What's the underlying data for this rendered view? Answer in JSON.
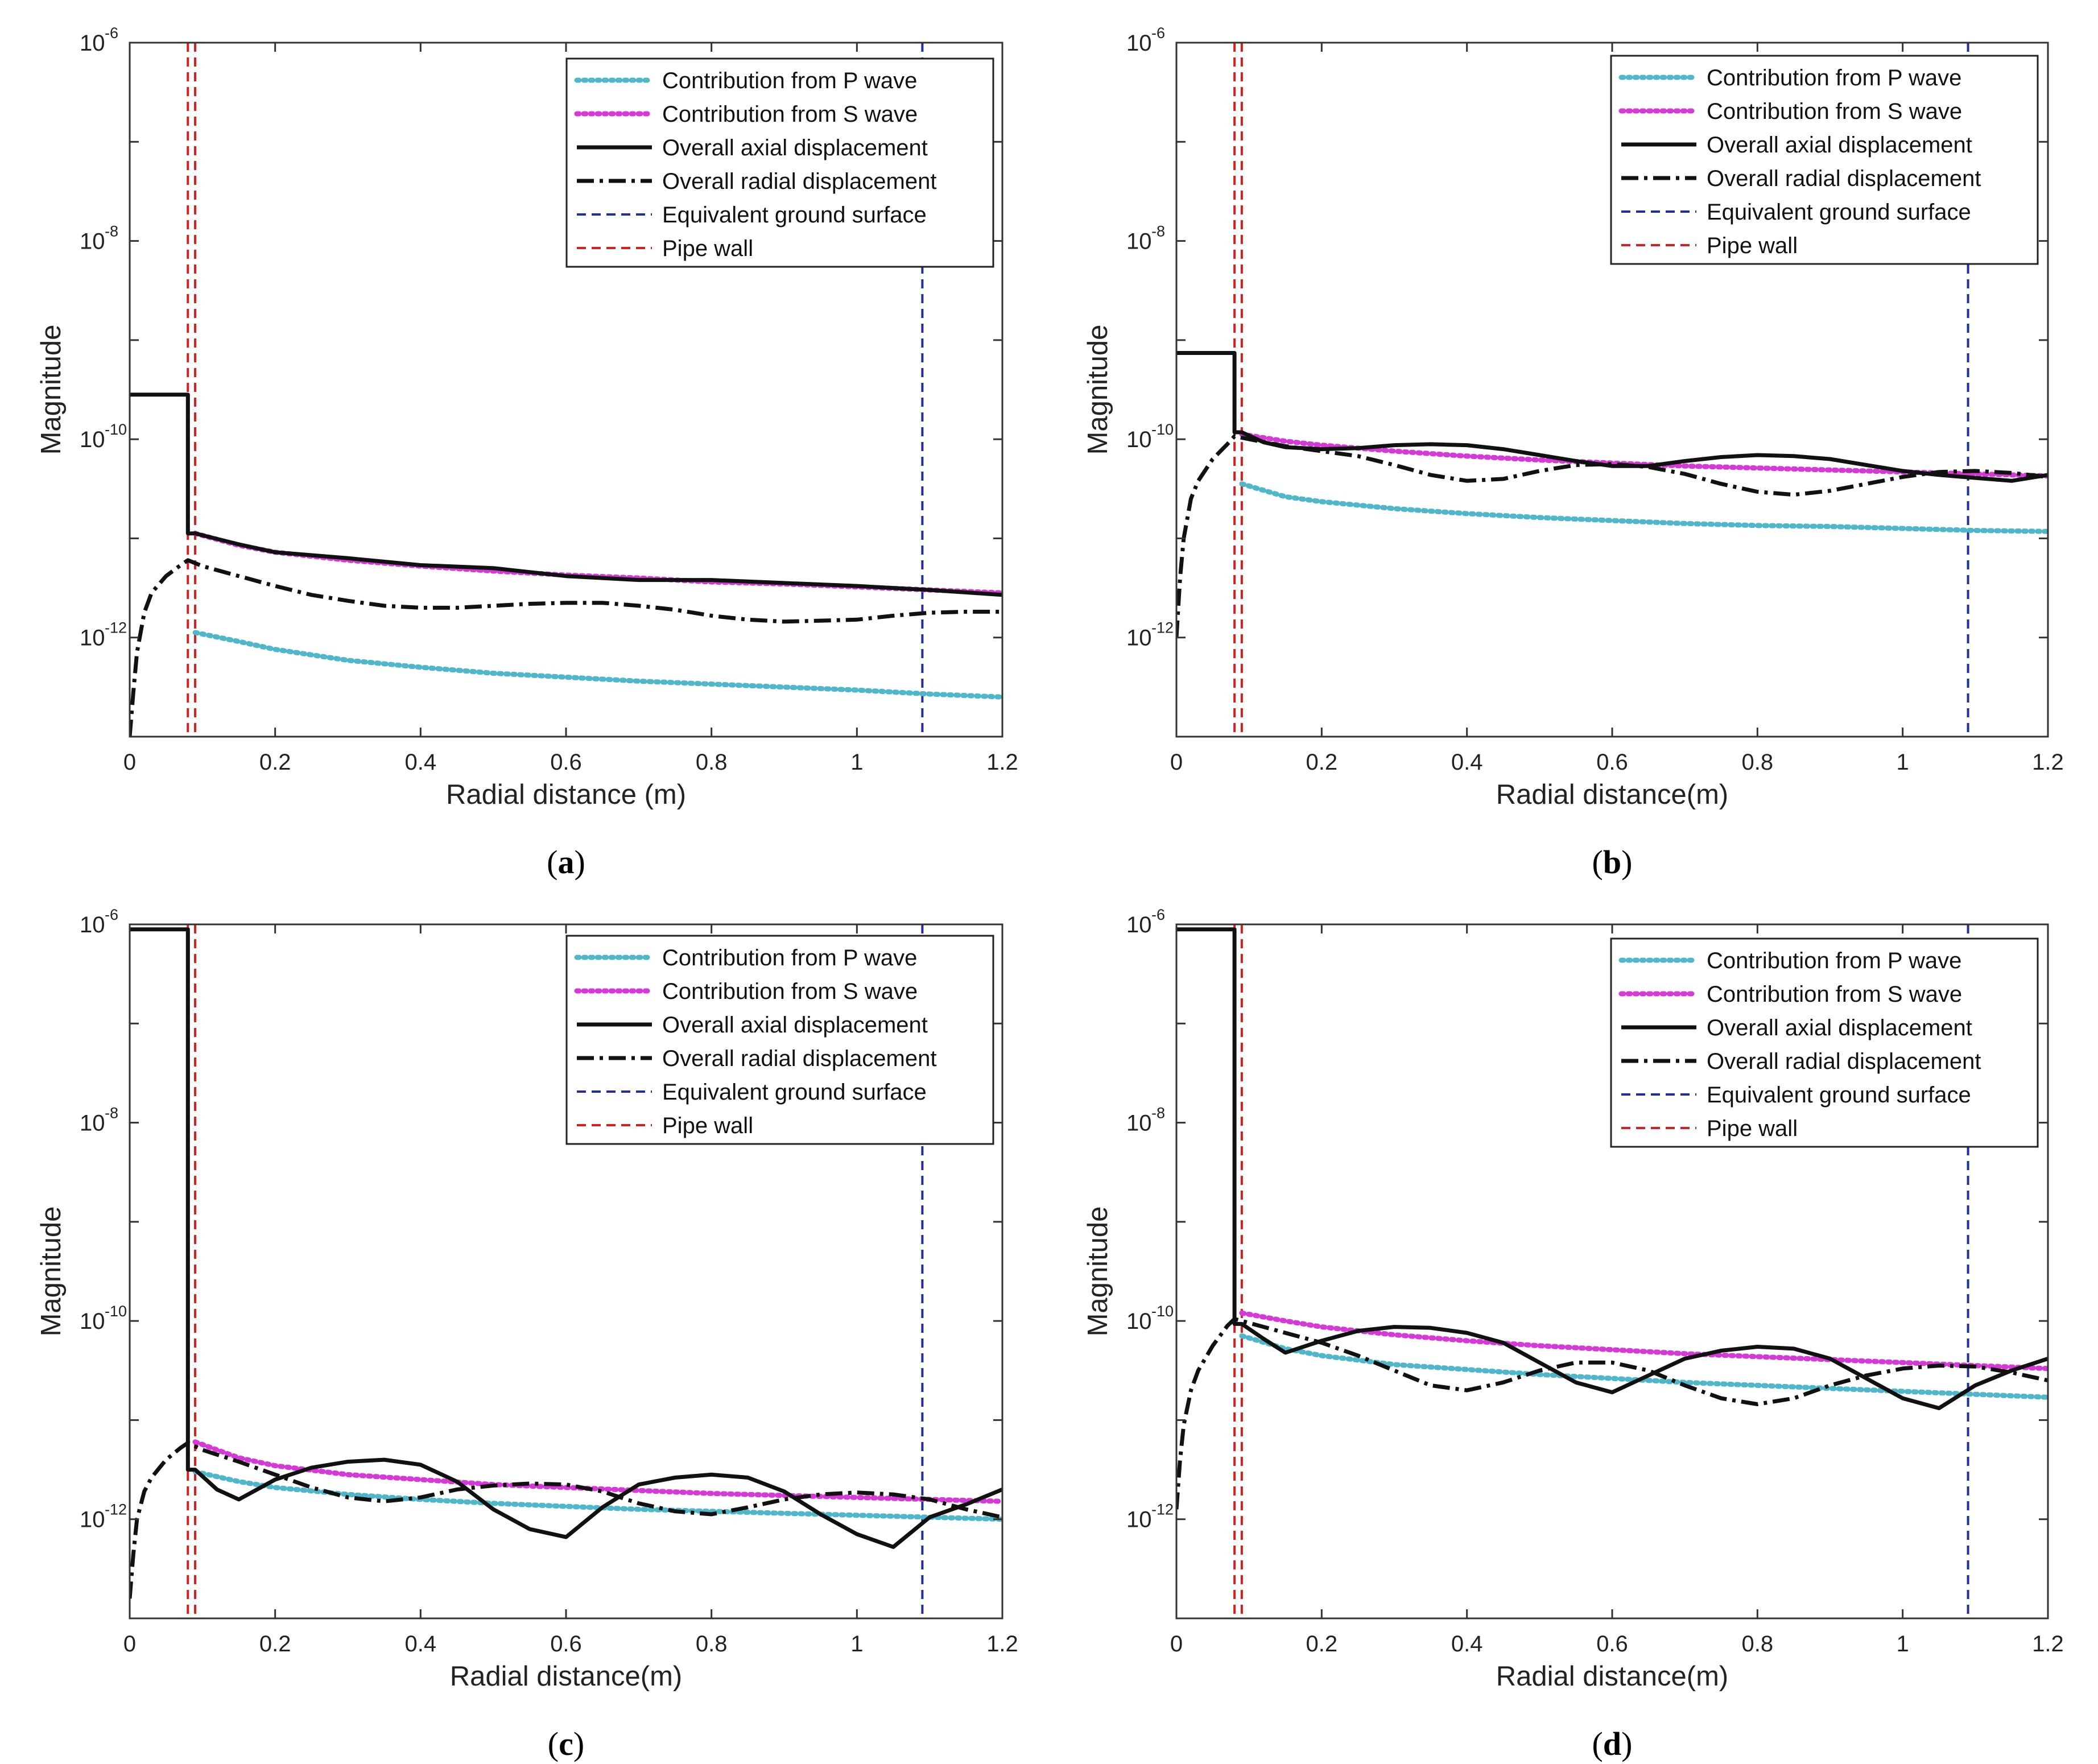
{
  "chart_data": [
    {
      "type": "line",
      "panel_label": "a",
      "xlabel": "Radial distance (m)",
      "ylabel": "Magnitude",
      "xlim": [
        0,
        1.2
      ],
      "ylim_exp": [
        -13,
        -6
      ],
      "x_ticks": [
        "0",
        "0.2",
        "0.4",
        "0.6",
        "0.8",
        "1",
        "1.2"
      ],
      "y_ticks": [
        {
          "base": "10",
          "exp": "-6"
        },
        {
          "base": "10",
          "exp": "-8"
        },
        {
          "base": "10",
          "exp": "-10"
        },
        {
          "base": "10",
          "exp": "-12"
        }
      ],
      "legend": [
        "Contribution from P wave",
        "Contribution from S wave",
        "Overall axial displacement",
        "Overall radial displacement",
        "Equivalent ground surface",
        "Pipe wall"
      ],
      "pipe_wall_x": [
        0.08,
        0.09
      ],
      "ground_surface_x": 1.09,
      "series": [
        {
          "name": "Contribution from P wave",
          "x": [
            0.09,
            0.15,
            0.2,
            0.3,
            0.4,
            0.5,
            0.6,
            0.7,
            0.8,
            0.9,
            1.0,
            1.1,
            1.2
          ],
          "log10": [
            -11.95,
            -12.04,
            -12.12,
            -12.23,
            -12.3,
            -12.36,
            -12.4,
            -12.44,
            -12.47,
            -12.5,
            -12.53,
            -12.57,
            -12.6
          ]
        },
        {
          "name": "Contribution from S wave",
          "x": [
            0.09,
            0.15,
            0.2,
            0.3,
            0.4,
            0.5,
            0.6,
            0.7,
            0.8,
            0.9,
            1.0,
            1.1,
            1.2
          ],
          "log10": [
            -10.95,
            -11.07,
            -11.14,
            -11.22,
            -11.28,
            -11.33,
            -11.37,
            -11.4,
            -11.44,
            -11.46,
            -11.49,
            -11.52,
            -11.55
          ]
        },
        {
          "name": "Overall axial displacement",
          "x": [
            0,
            0.08,
            0.08,
            0.09,
            0.15,
            0.2,
            0.3,
            0.4,
            0.5,
            0.6,
            0.7,
            0.8,
            0.9,
            1.0,
            1.1,
            1.2
          ],
          "log10": [
            -9.55,
            -9.55,
            -10.95,
            -10.95,
            -11.06,
            -11.14,
            -11.2,
            -11.27,
            -11.3,
            -11.38,
            -11.42,
            -11.42,
            -11.45,
            -11.48,
            -11.52,
            -11.57
          ]
        },
        {
          "name": "Overall radial displacement",
          "x": [
            0,
            0.005,
            0.01,
            0.02,
            0.03,
            0.05,
            0.07,
            0.08,
            0.1,
            0.15,
            0.2,
            0.25,
            0.3,
            0.35,
            0.4,
            0.45,
            0.5,
            0.55,
            0.6,
            0.65,
            0.7,
            0.75,
            0.8,
            0.85,
            0.9,
            0.95,
            1.0,
            1.05,
            1.1,
            1.15,
            1.2
          ],
          "log10": [
            -13.0,
            -12.55,
            -12.15,
            -11.75,
            -11.55,
            -11.38,
            -11.27,
            -11.22,
            -11.28,
            -11.38,
            -11.48,
            -11.57,
            -11.63,
            -11.68,
            -11.7,
            -11.7,
            -11.68,
            -11.66,
            -11.65,
            -11.65,
            -11.68,
            -11.72,
            -11.78,
            -11.82,
            -11.84,
            -11.83,
            -11.82,
            -11.78,
            -11.75,
            -11.74,
            -11.74
          ]
        }
      ]
    },
    {
      "type": "line",
      "panel_label": "b",
      "xlabel": "Radial distance(m)",
      "ylabel": "Magnitude",
      "xlim": [
        0,
        1.2
      ],
      "ylim_exp": [
        -13,
        -6
      ],
      "x_ticks": [
        "0",
        "0.2",
        "0.4",
        "0.6",
        "0.8",
        "1",
        "1.2"
      ],
      "y_ticks": [
        {
          "base": "10",
          "exp": "-6"
        },
        {
          "base": "10",
          "exp": "-8"
        },
        {
          "base": "10",
          "exp": "-10"
        },
        {
          "base": "10",
          "exp": "-12"
        }
      ],
      "legend": [
        "Contribution from P wave",
        "Contribution from S wave",
        "Overall axial displacement",
        "Overall radial displacement",
        "Equivalent ground surface",
        "Pipe wall"
      ],
      "pipe_wall_x": [
        0.08,
        0.09
      ],
      "ground_surface_x": 1.09,
      "series": [
        {
          "name": "Contribution from P wave",
          "x": [
            0.09,
            0.15,
            0.2,
            0.3,
            0.4,
            0.5,
            0.6,
            0.7,
            0.8,
            0.9,
            1.0,
            1.1,
            1.2
          ],
          "log10": [
            -10.45,
            -10.58,
            -10.63,
            -10.7,
            -10.75,
            -10.79,
            -10.82,
            -10.85,
            -10.87,
            -10.88,
            -10.9,
            -10.92,
            -10.93
          ]
        },
        {
          "name": "Contribution from S wave",
          "x": [
            0.09,
            0.15,
            0.2,
            0.3,
            0.4,
            0.5,
            0.6,
            0.7,
            0.8,
            0.9,
            1.0,
            1.1,
            1.2
          ],
          "log10": [
            -9.95,
            -10.02,
            -10.06,
            -10.12,
            -10.17,
            -10.21,
            -10.24,
            -10.27,
            -10.29,
            -10.31,
            -10.33,
            -10.35,
            -10.37
          ]
        },
        {
          "name": "Overall axial displacement",
          "x": [
            0,
            0.08,
            0.08,
            0.09,
            0.12,
            0.15,
            0.2,
            0.25,
            0.3,
            0.35,
            0.4,
            0.45,
            0.5,
            0.55,
            0.6,
            0.65,
            0.7,
            0.75,
            0.8,
            0.85,
            0.9,
            0.95,
            1.0,
            1.05,
            1.1,
            1.15,
            1.2
          ],
          "log10": [
            -9.13,
            -9.13,
            -9.93,
            -9.93,
            -10.03,
            -10.08,
            -10.1,
            -10.09,
            -10.06,
            -10.05,
            -10.06,
            -10.1,
            -10.16,
            -10.22,
            -10.27,
            -10.27,
            -10.22,
            -10.18,
            -10.16,
            -10.17,
            -10.2,
            -10.26,
            -10.32,
            -10.36,
            -10.39,
            -10.42,
            -10.36
          ]
        },
        {
          "name": "Overall radial displacement",
          "x": [
            0,
            0.005,
            0.01,
            0.02,
            0.03,
            0.05,
            0.07,
            0.08,
            0.1,
            0.15,
            0.2,
            0.25,
            0.3,
            0.35,
            0.4,
            0.45,
            0.5,
            0.55,
            0.6,
            0.65,
            0.7,
            0.75,
            0.8,
            0.85,
            0.9,
            0.95,
            1.0,
            1.05,
            1.1,
            1.15,
            1.2
          ],
          "log10": [
            -12.0,
            -11.4,
            -11.0,
            -10.6,
            -10.42,
            -10.2,
            -10.05,
            -9.97,
            -10.0,
            -10.07,
            -10.12,
            -10.17,
            -10.26,
            -10.36,
            -10.42,
            -10.4,
            -10.32,
            -10.26,
            -10.25,
            -10.28,
            -10.35,
            -10.45,
            -10.53,
            -10.56,
            -10.52,
            -10.45,
            -10.38,
            -10.33,
            -10.32,
            -10.34,
            -10.38
          ]
        }
      ]
    },
    {
      "type": "line",
      "panel_label": "c",
      "xlabel": "Radial distance(m)",
      "ylabel": "Magnitude",
      "xlim": [
        0,
        1.2
      ],
      "ylim_exp": [
        -13,
        -6
      ],
      "x_ticks": [
        "0",
        "0.2",
        "0.4",
        "0.6",
        "0.8",
        "1",
        "1.2"
      ],
      "y_ticks": [
        {
          "base": "10",
          "exp": "-6"
        },
        {
          "base": "10",
          "exp": "-8"
        },
        {
          "base": "10",
          "exp": "-10"
        },
        {
          "base": "10",
          "exp": "-12"
        }
      ],
      "legend": [
        "Contribution from P wave",
        "Contribution from S wave",
        "Overall axial displacement",
        "Overall radial displacement",
        "Equivalent ground surface",
        "Pipe wall"
      ],
      "pipe_wall_x": [
        0.08,
        0.09
      ],
      "ground_surface_x": 1.09,
      "series": [
        {
          "name": "Contribution from P wave",
          "x": [
            0.09,
            0.15,
            0.2,
            0.3,
            0.4,
            0.5,
            0.6,
            0.7,
            0.8,
            0.9,
            1.0,
            1.1,
            1.2
          ],
          "log10": [
            -11.52,
            -11.62,
            -11.68,
            -11.75,
            -11.8,
            -11.84,
            -11.87,
            -11.9,
            -11.92,
            -11.94,
            -11.96,
            -11.98,
            -12.0
          ]
        },
        {
          "name": "Contribution from S wave",
          "x": [
            0.09,
            0.15,
            0.2,
            0.3,
            0.4,
            0.5,
            0.6,
            0.7,
            0.8,
            0.9,
            1.0,
            1.1,
            1.2
          ],
          "log10": [
            -11.22,
            -11.38,
            -11.46,
            -11.55,
            -11.6,
            -11.65,
            -11.68,
            -11.71,
            -11.74,
            -11.76,
            -11.78,
            -11.8,
            -11.82
          ]
        },
        {
          "name": "Overall axial displacement",
          "x": [
            0,
            0.08,
            0.08,
            0.09,
            0.12,
            0.15,
            0.2,
            0.25,
            0.3,
            0.35,
            0.4,
            0.45,
            0.5,
            0.55,
            0.6,
            0.65,
            0.7,
            0.75,
            0.8,
            0.85,
            0.9,
            0.95,
            1.0,
            1.05,
            1.1,
            1.15,
            1.2
          ],
          "log10": [
            -6.05,
            -6.05,
            -11.5,
            -11.5,
            -11.7,
            -11.8,
            -11.6,
            -11.48,
            -11.42,
            -11.4,
            -11.45,
            -11.62,
            -11.9,
            -12.1,
            -12.18,
            -11.88,
            -11.65,
            -11.58,
            -11.55,
            -11.58,
            -11.72,
            -11.95,
            -12.15,
            -12.28,
            -11.98,
            -11.85,
            -11.7
          ]
        },
        {
          "name": "Overall radial displacement",
          "x": [
            0,
            0.005,
            0.01,
            0.02,
            0.03,
            0.05,
            0.07,
            0.08,
            0.1,
            0.15,
            0.2,
            0.25,
            0.3,
            0.35,
            0.4,
            0.45,
            0.5,
            0.55,
            0.6,
            0.65,
            0.7,
            0.75,
            0.8,
            0.85,
            0.9,
            0.95,
            1.0,
            1.05,
            1.1,
            1.15,
            1.2
          ],
          "log10": [
            -12.8,
            -12.35,
            -12.0,
            -11.72,
            -11.58,
            -11.4,
            -11.28,
            -11.23,
            -11.3,
            -11.42,
            -11.55,
            -11.68,
            -11.78,
            -11.82,
            -11.78,
            -11.7,
            -11.66,
            -11.64,
            -11.65,
            -11.72,
            -11.84,
            -11.92,
            -11.95,
            -11.88,
            -11.8,
            -11.75,
            -11.73,
            -11.75,
            -11.8,
            -11.9,
            -11.98
          ]
        }
      ]
    },
    {
      "type": "line",
      "panel_label": "d",
      "xlabel": "Radial distance(m)",
      "ylabel": "Magnitude",
      "xlim": [
        0,
        1.2
      ],
      "ylim_exp": [
        -13,
        -6
      ],
      "x_ticks": [
        "0",
        "0.2",
        "0.4",
        "0.6",
        "0.8",
        "1",
        "1.2"
      ],
      "y_ticks": [
        {
          "base": "10",
          "exp": "-6"
        },
        {
          "base": "10",
          "exp": "-8"
        },
        {
          "base": "10",
          "exp": "-10"
        },
        {
          "base": "10",
          "exp": "-12"
        }
      ],
      "legend": [
        "Contribution from P wave",
        "Contribution from S wave",
        "Overall axial displacement",
        "Overall radial displacement",
        "Equivalent ground surface",
        "Pipe wall"
      ],
      "pipe_wall_x": [
        0.08,
        0.09
      ],
      "ground_surface_x": 1.09,
      "series": [
        {
          "name": "Contribution from P wave",
          "x": [
            0.09,
            0.15,
            0.2,
            0.3,
            0.4,
            0.5,
            0.6,
            0.7,
            0.8,
            0.9,
            1.0,
            1.1,
            1.2
          ],
          "log10": [
            -10.15,
            -10.28,
            -10.35,
            -10.44,
            -10.49,
            -10.54,
            -10.58,
            -10.62,
            -10.65,
            -10.68,
            -10.71,
            -10.74,
            -10.77
          ]
        },
        {
          "name": "Contribution from S wave",
          "x": [
            0.09,
            0.15,
            0.2,
            0.3,
            0.4,
            0.5,
            0.6,
            0.7,
            0.8,
            0.9,
            1.0,
            1.1,
            1.2
          ],
          "log10": [
            -9.92,
            -10.0,
            -10.06,
            -10.14,
            -10.2,
            -10.25,
            -10.29,
            -10.33,
            -10.36,
            -10.39,
            -10.42,
            -10.45,
            -10.48
          ]
        },
        {
          "name": "Overall axial displacement",
          "x": [
            0,
            0.08,
            0.08,
            0.09,
            0.12,
            0.15,
            0.2,
            0.25,
            0.3,
            0.35,
            0.4,
            0.45,
            0.5,
            0.55,
            0.6,
            0.65,
            0.7,
            0.75,
            0.8,
            0.85,
            0.9,
            0.95,
            1.0,
            1.05,
            1.1,
            1.15,
            1.2
          ],
          "log10": [
            -6.05,
            -6.05,
            -10.03,
            -10.03,
            -10.18,
            -10.32,
            -10.2,
            -10.1,
            -10.06,
            -10.07,
            -10.12,
            -10.22,
            -10.42,
            -10.62,
            -10.72,
            -10.55,
            -10.38,
            -10.3,
            -10.26,
            -10.28,
            -10.38,
            -10.58,
            -10.78,
            -10.88,
            -10.65,
            -10.5,
            -10.38
          ]
        },
        {
          "name": "Overall radial displacement",
          "x": [
            0,
            0.005,
            0.01,
            0.02,
            0.03,
            0.05,
            0.07,
            0.08,
            0.1,
            0.15,
            0.2,
            0.25,
            0.3,
            0.35,
            0.4,
            0.45,
            0.5,
            0.55,
            0.6,
            0.65,
            0.7,
            0.75,
            0.8,
            0.85,
            0.9,
            0.95,
            1.0,
            1.05,
            1.1,
            1.15,
            1.2
          ],
          "log10": [
            -11.9,
            -11.4,
            -11.05,
            -10.7,
            -10.5,
            -10.25,
            -10.05,
            -9.98,
            -10.02,
            -10.12,
            -10.22,
            -10.35,
            -10.5,
            -10.65,
            -10.7,
            -10.62,
            -10.5,
            -10.42,
            -10.42,
            -10.5,
            -10.65,
            -10.78,
            -10.84,
            -10.78,
            -10.65,
            -10.55,
            -10.48,
            -10.45,
            -10.46,
            -10.52,
            -10.6
          ]
        }
      ]
    }
  ]
}
